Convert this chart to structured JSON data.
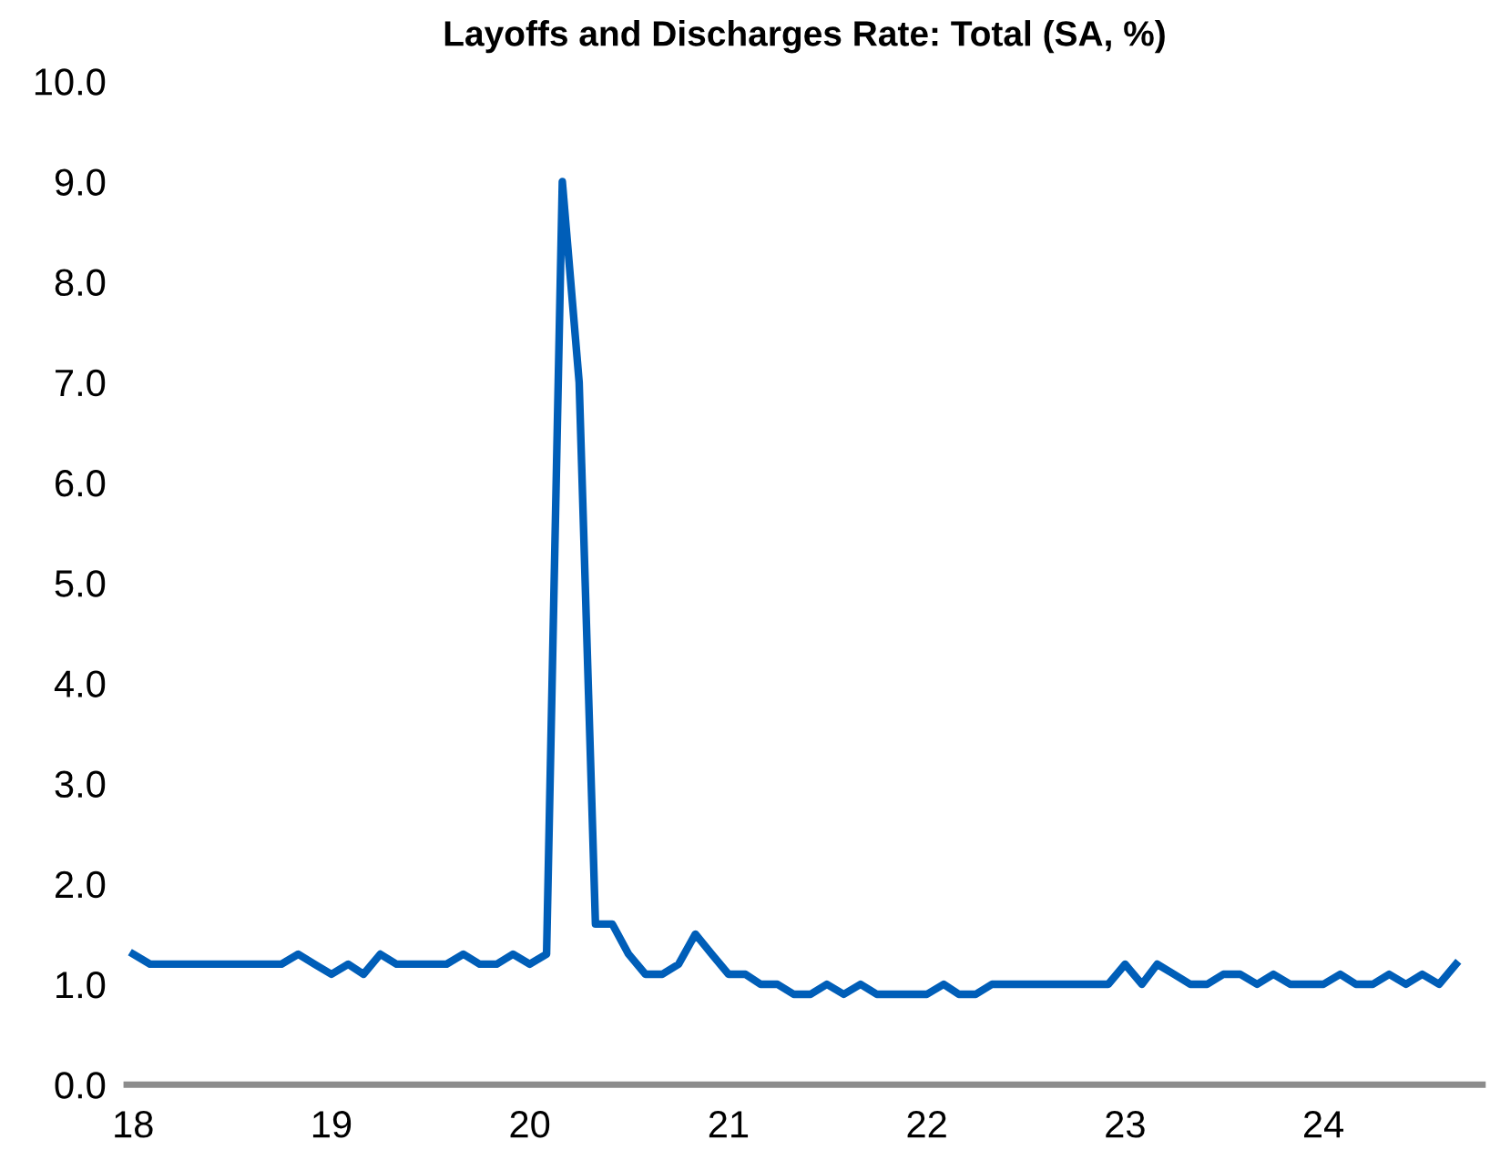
{
  "chart_data": {
    "type": "line",
    "title": "Layoffs and Discharges Rate: Total (SA, %)",
    "x": [
      "2018-01",
      "2018-02",
      "2018-03",
      "2018-04",
      "2018-05",
      "2018-06",
      "2018-07",
      "2018-08",
      "2018-09",
      "2018-10",
      "2018-11",
      "2018-12",
      "2019-01",
      "2019-02",
      "2019-03",
      "2019-04",
      "2019-05",
      "2019-06",
      "2019-07",
      "2019-08",
      "2019-09",
      "2019-10",
      "2019-11",
      "2019-12",
      "2020-01",
      "2020-02",
      "2020-03",
      "2020-04",
      "2020-05",
      "2020-06",
      "2020-07",
      "2020-08",
      "2020-09",
      "2020-10",
      "2020-11",
      "2020-12",
      "2021-01",
      "2021-02",
      "2021-03",
      "2021-04",
      "2021-05",
      "2021-06",
      "2021-07",
      "2021-08",
      "2021-09",
      "2021-10",
      "2021-11",
      "2021-12",
      "2022-01",
      "2022-02",
      "2022-03",
      "2022-04",
      "2022-05",
      "2022-06",
      "2022-07",
      "2022-08",
      "2022-09",
      "2022-10",
      "2022-11",
      "2022-12",
      "2023-01",
      "2023-02",
      "2023-03",
      "2023-04",
      "2023-05",
      "2023-06",
      "2023-07",
      "2023-08",
      "2023-09",
      "2023-10",
      "2023-11",
      "2023-12",
      "2024-01",
      "2024-02",
      "2024-03",
      "2024-04",
      "2024-05",
      "2024-06",
      "2024-07",
      "2024-08",
      "2024-09"
    ],
    "series": [
      {
        "color": "#005eb8",
        "values": [
          1.3,
          1.2,
          1.2,
          1.2,
          1.2,
          1.2,
          1.2,
          1.2,
          1.2,
          1.2,
          1.3,
          1.2,
          1.1,
          1.2,
          1.1,
          1.3,
          1.2,
          1.2,
          1.2,
          1.2,
          1.3,
          1.2,
          1.2,
          1.3,
          1.2,
          1.3,
          9.0,
          7.0,
          1.6,
          1.6,
          1.3,
          1.1,
          1.1,
          1.2,
          1.5,
          1.3,
          1.1,
          1.1,
          1.0,
          1.0,
          0.9,
          0.9,
          1.0,
          0.9,
          1.0,
          0.9,
          0.9,
          0.9,
          0.9,
          1.0,
          0.9,
          0.9,
          1.0,
          1.0,
          1.0,
          1.0,
          1.0,
          1.0,
          1.0,
          1.0,
          1.2,
          1.0,
          1.2,
          1.1,
          1.0,
          1.0,
          1.1,
          1.1,
          1.0,
          1.1,
          1.0,
          1.0,
          1.0,
          1.1,
          1.0,
          1.0,
          1.1,
          1.0,
          1.1,
          1.0,
          1.2
        ]
      }
    ],
    "xlim": [
      "2017-12-20",
      "2024-10-20"
    ],
    "xticks": [
      {
        "value": "2018-01",
        "label": "18"
      },
      {
        "value": "2019-01",
        "label": "19"
      },
      {
        "value": "2020-01",
        "label": "20"
      },
      {
        "value": "2021-01",
        "label": "21"
      },
      {
        "value": "2022-01",
        "label": "22"
      },
      {
        "value": "2023-01",
        "label": "23"
      },
      {
        "value": "2024-01",
        "label": "24"
      }
    ],
    "ylim": [
      0,
      10
    ],
    "yticks": [
      {
        "value": 0,
        "label": "0.0"
      },
      {
        "value": 1,
        "label": "1.0"
      },
      {
        "value": 2,
        "label": "2.0"
      },
      {
        "value": 3,
        "label": "3.0"
      },
      {
        "value": 4,
        "label": "4.0"
      },
      {
        "value": 5,
        "label": "5.0"
      },
      {
        "value": 6,
        "label": "6.0"
      },
      {
        "value": 7,
        "label": "7.0"
      },
      {
        "value": 8,
        "label": "8.0"
      },
      {
        "value": 9,
        "label": "9.0"
      },
      {
        "value": 10,
        "label": "10.0"
      }
    ],
    "grid": false,
    "legend": false,
    "marker": "none",
    "line_style": "solid"
  }
}
